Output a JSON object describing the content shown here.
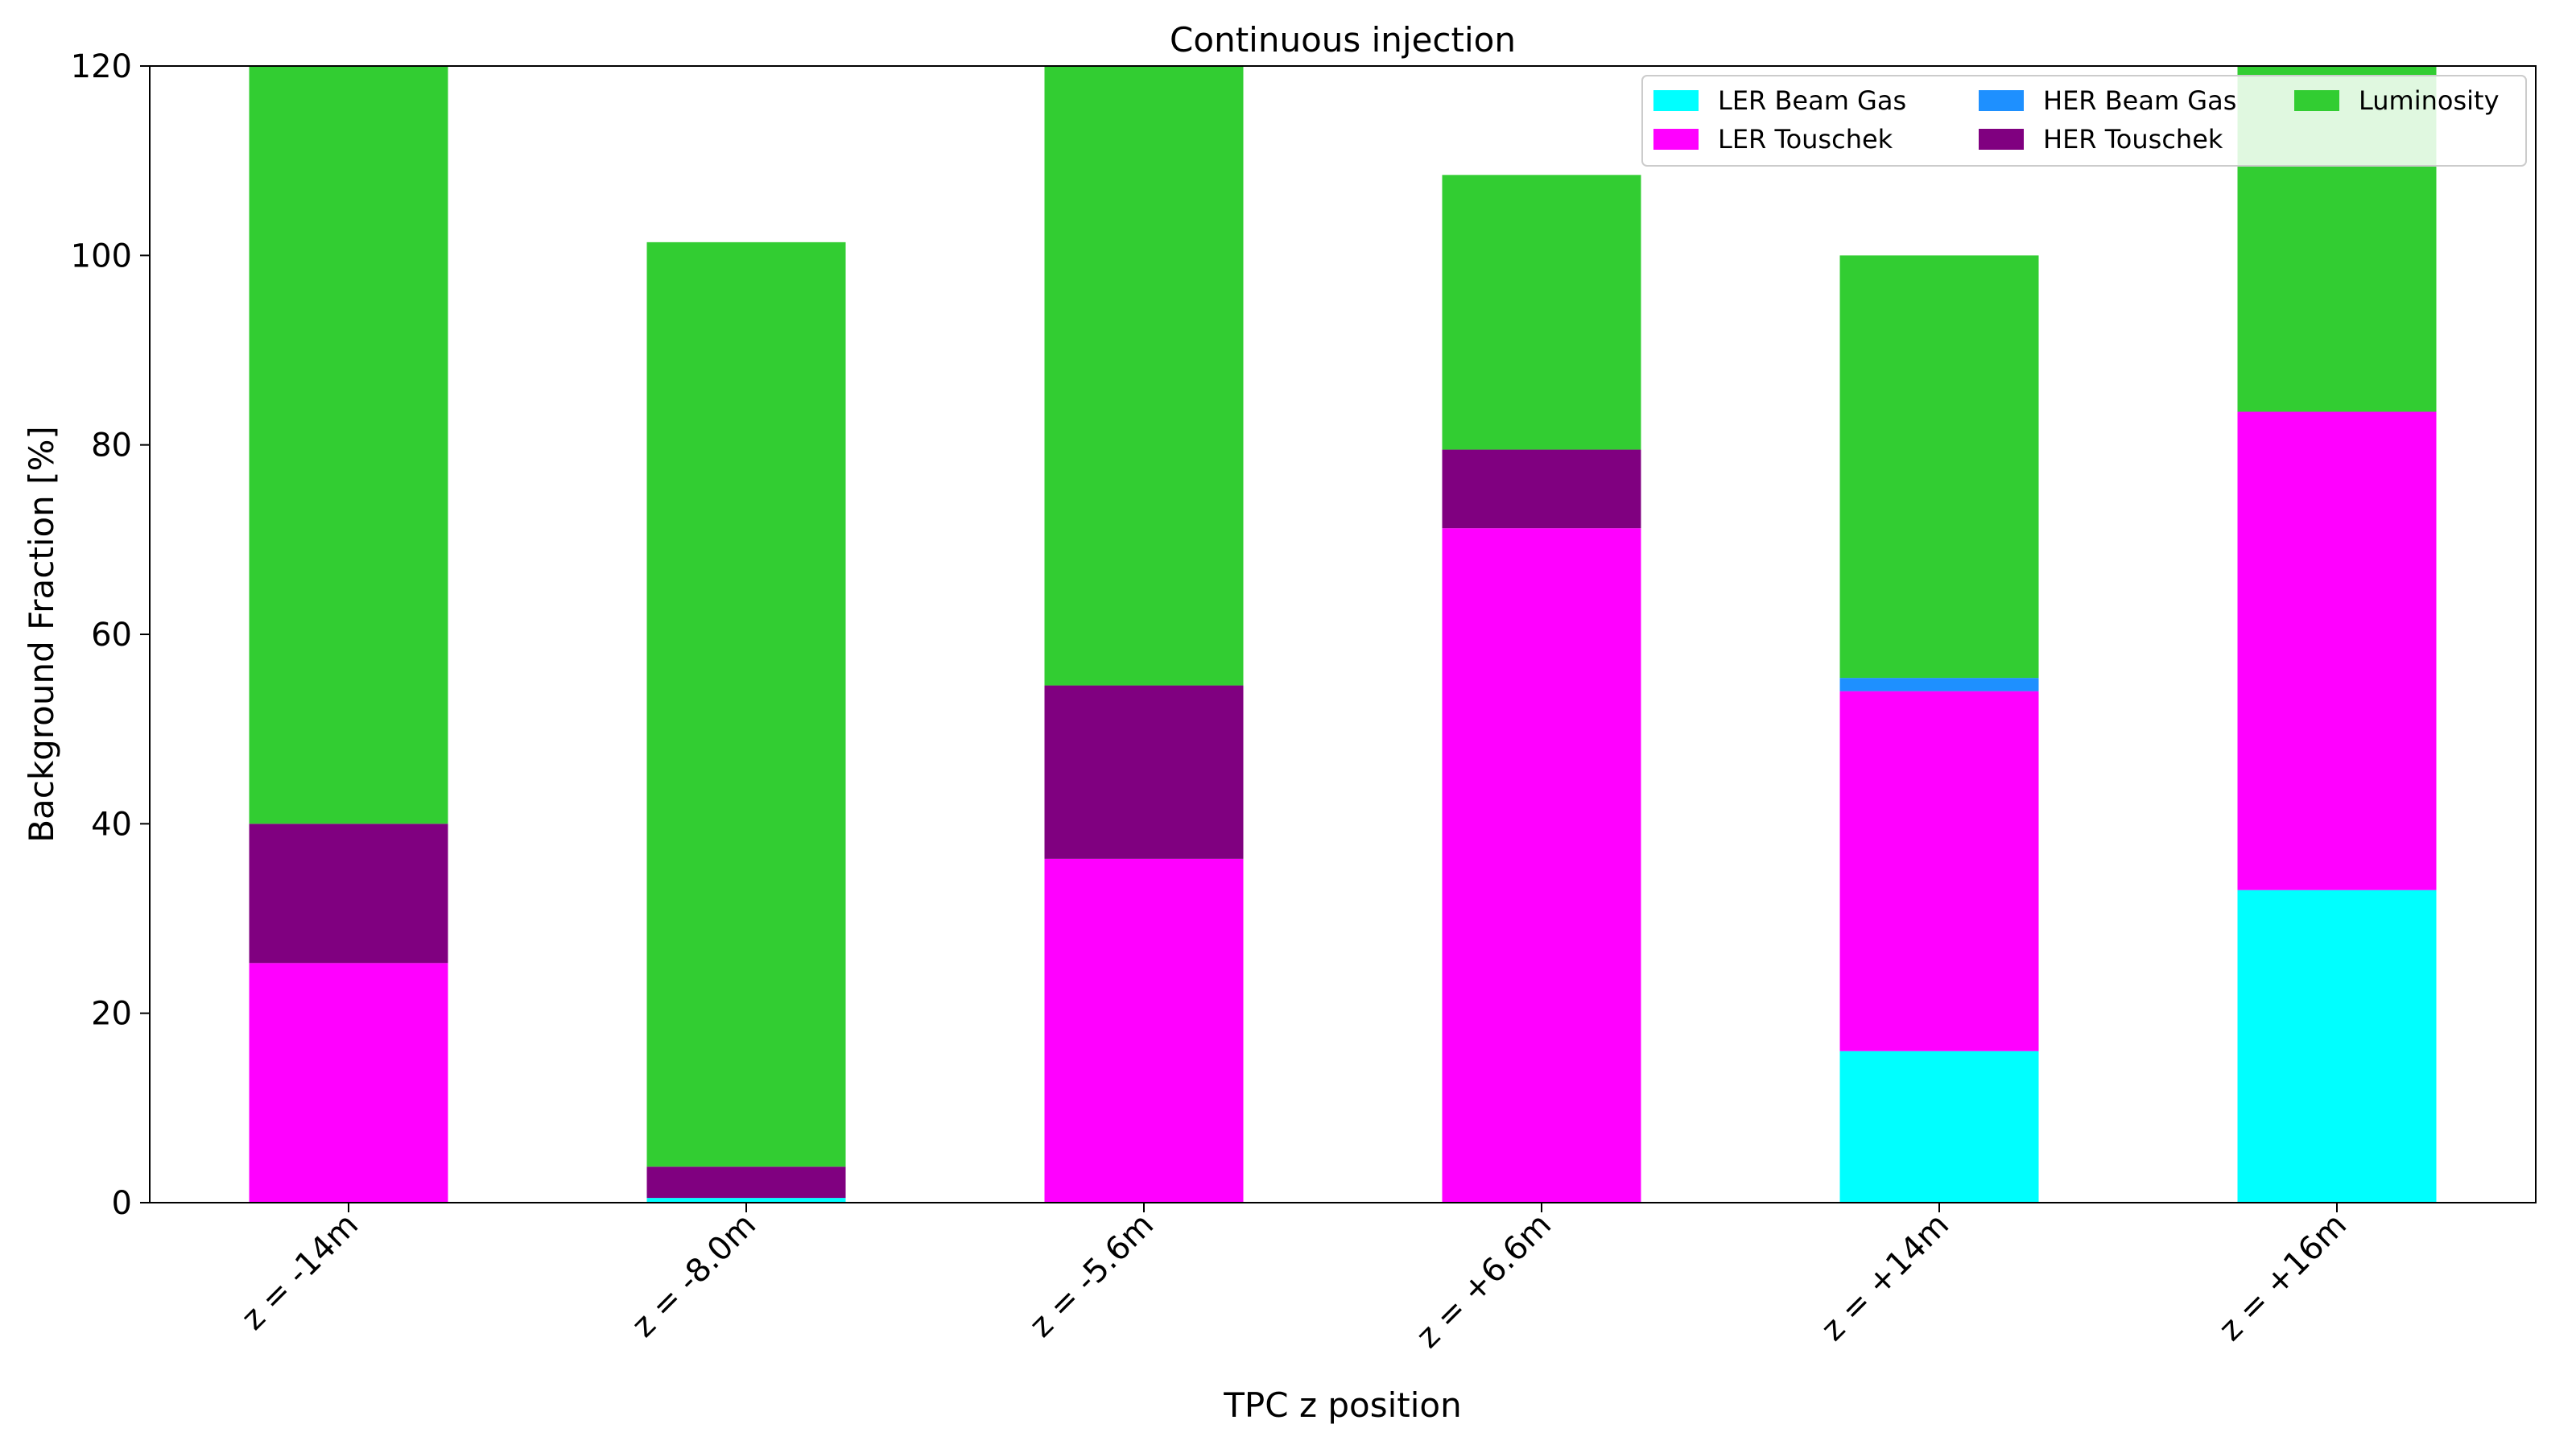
{
  "chart_data": {
    "type": "bar",
    "stacked": true,
    "title": "Continuous injection",
    "xlabel": "TPC z position",
    "ylabel": "Background Fraction [%]",
    "ylim": [
      0,
      120
    ],
    "yticks": [
      0,
      20,
      40,
      60,
      80,
      100,
      120
    ],
    "categories": [
      "z = -14m",
      "z = -8.0m",
      "z = -5.6m",
      "z = +6.6m",
      "z = +14m",
      "z = +16m"
    ],
    "series": [
      {
        "name": "LER Beam Gas",
        "color": "#00ffff",
        "values": [
          0,
          0.5,
          0,
          0,
          16,
          33
        ]
      },
      {
        "name": "LER Touschek",
        "color": "#ff00ff",
        "values": [
          25.3,
          0,
          36.3,
          71.2,
          38,
          50.5
        ]
      },
      {
        "name": "HER Beam Gas",
        "color": "#1e90ff",
        "values": [
          0,
          0,
          0,
          0,
          1.4,
          0
        ]
      },
      {
        "name": "HER Touschek",
        "color": "#800080",
        "values": [
          14.7,
          3.3,
          18.3,
          8.3,
          0,
          0
        ]
      },
      {
        "name": "Luminosity",
        "color": "#32cd32",
        "values": [
          84,
          97.6,
          68,
          29,
          44.6,
          40
        ]
      }
    ],
    "legend": {
      "placement": "top-right",
      "columns": 3
    },
    "grid": false
  }
}
